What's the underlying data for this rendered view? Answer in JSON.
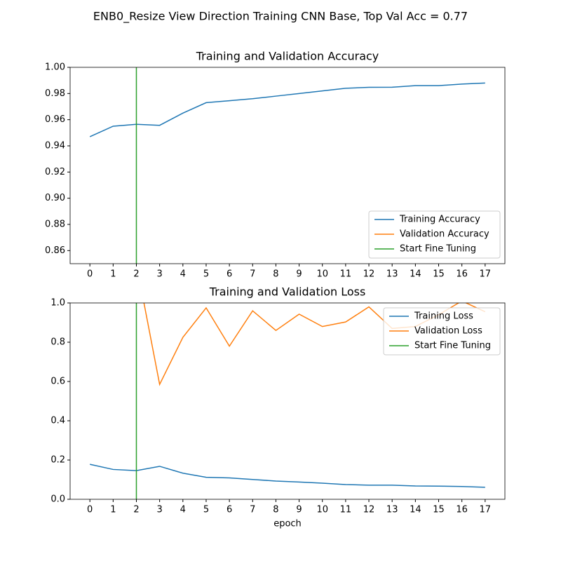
{
  "title": "ENB0_Resize View Direction Training CNN Base, Top Val Acc = 0.77",
  "chart_data": [
    {
      "type": "line",
      "title": "Training and Validation Accuracy",
      "x": [
        0,
        1,
        2,
        3,
        4,
        5,
        6,
        7,
        8,
        9,
        10,
        11,
        12,
        13,
        14,
        15,
        16,
        17
      ],
      "series": [
        {
          "name": "Training Accuracy",
          "color": "#1f77b4",
          "values": [
            0.947,
            0.955,
            0.9565,
            0.9557,
            0.965,
            0.973,
            0.9745,
            0.976,
            0.978,
            0.98,
            0.982,
            0.984,
            0.9847,
            0.9848,
            0.986,
            0.986,
            0.9872,
            0.988
          ]
        },
        {
          "name": "Validation Accuracy",
          "color": "#ff7f0e",
          "values": [
            null,
            null,
            null,
            null,
            null,
            null,
            null,
            null,
            null,
            null,
            null,
            null,
            null,
            null,
            null,
            null,
            null,
            null
          ]
        }
      ],
      "vline": {
        "name": "Start Fine Tuning",
        "color": "#2ca02c",
        "x": 2
      },
      "xlim": [
        -0.85,
        17.85
      ],
      "xticks": [
        0,
        1,
        2,
        3,
        4,
        5,
        6,
        7,
        8,
        9,
        10,
        11,
        12,
        13,
        14,
        15,
        16,
        17
      ],
      "ylim": [
        0.85,
        1.0
      ],
      "yticks": [
        0.86,
        0.88,
        {
          "value": 0.9,
          "label": "0.90"
        },
        0.92,
        0.94,
        0.96,
        0.98,
        {
          "value": 1.0,
          "label": "1.00"
        }
      ],
      "legend": "lower right"
    },
    {
      "type": "line",
      "title": "Training and Validation Loss",
      "xlabel": "epoch",
      "x": [
        0,
        1,
        2,
        3,
        4,
        5,
        6,
        7,
        8,
        9,
        10,
        11,
        12,
        13,
        14,
        15,
        16,
        17
      ],
      "series": [
        {
          "name": "Training Loss",
          "color": "#1f77b4",
          "values": [
            0.178,
            0.152,
            0.146,
            0.168,
            0.133,
            0.112,
            0.109,
            0.101,
            0.093,
            0.088,
            0.082,
            0.075,
            0.072,
            0.072,
            0.068,
            0.067,
            0.065,
            0.061
          ]
        },
        {
          "name": "Validation Loss",
          "color": "#ff7f0e",
          "values": [
            null,
            null,
            1.2,
            0.585,
            0.825,
            0.975,
            0.78,
            0.96,
            0.86,
            0.943,
            0.88,
            0.903,
            0.98,
            0.87,
            0.88,
            0.94,
            1.01,
            0.955
          ]
        }
      ],
      "vline": {
        "name": "Start Fine Tuning",
        "color": "#2ca02c",
        "x": 2
      },
      "xlim": [
        -0.85,
        17.85
      ],
      "xticks": [
        0,
        1,
        2,
        3,
        4,
        5,
        6,
        7,
        8,
        9,
        10,
        11,
        12,
        13,
        14,
        15,
        16,
        17
      ],
      "ylim": [
        0,
        1
      ],
      "yticks": [
        {
          "value": 0,
          "label": "0.0"
        },
        0.2,
        0.4,
        0.6,
        0.8,
        {
          "value": 1,
          "label": "1.0"
        }
      ],
      "legend": "upper right"
    }
  ]
}
